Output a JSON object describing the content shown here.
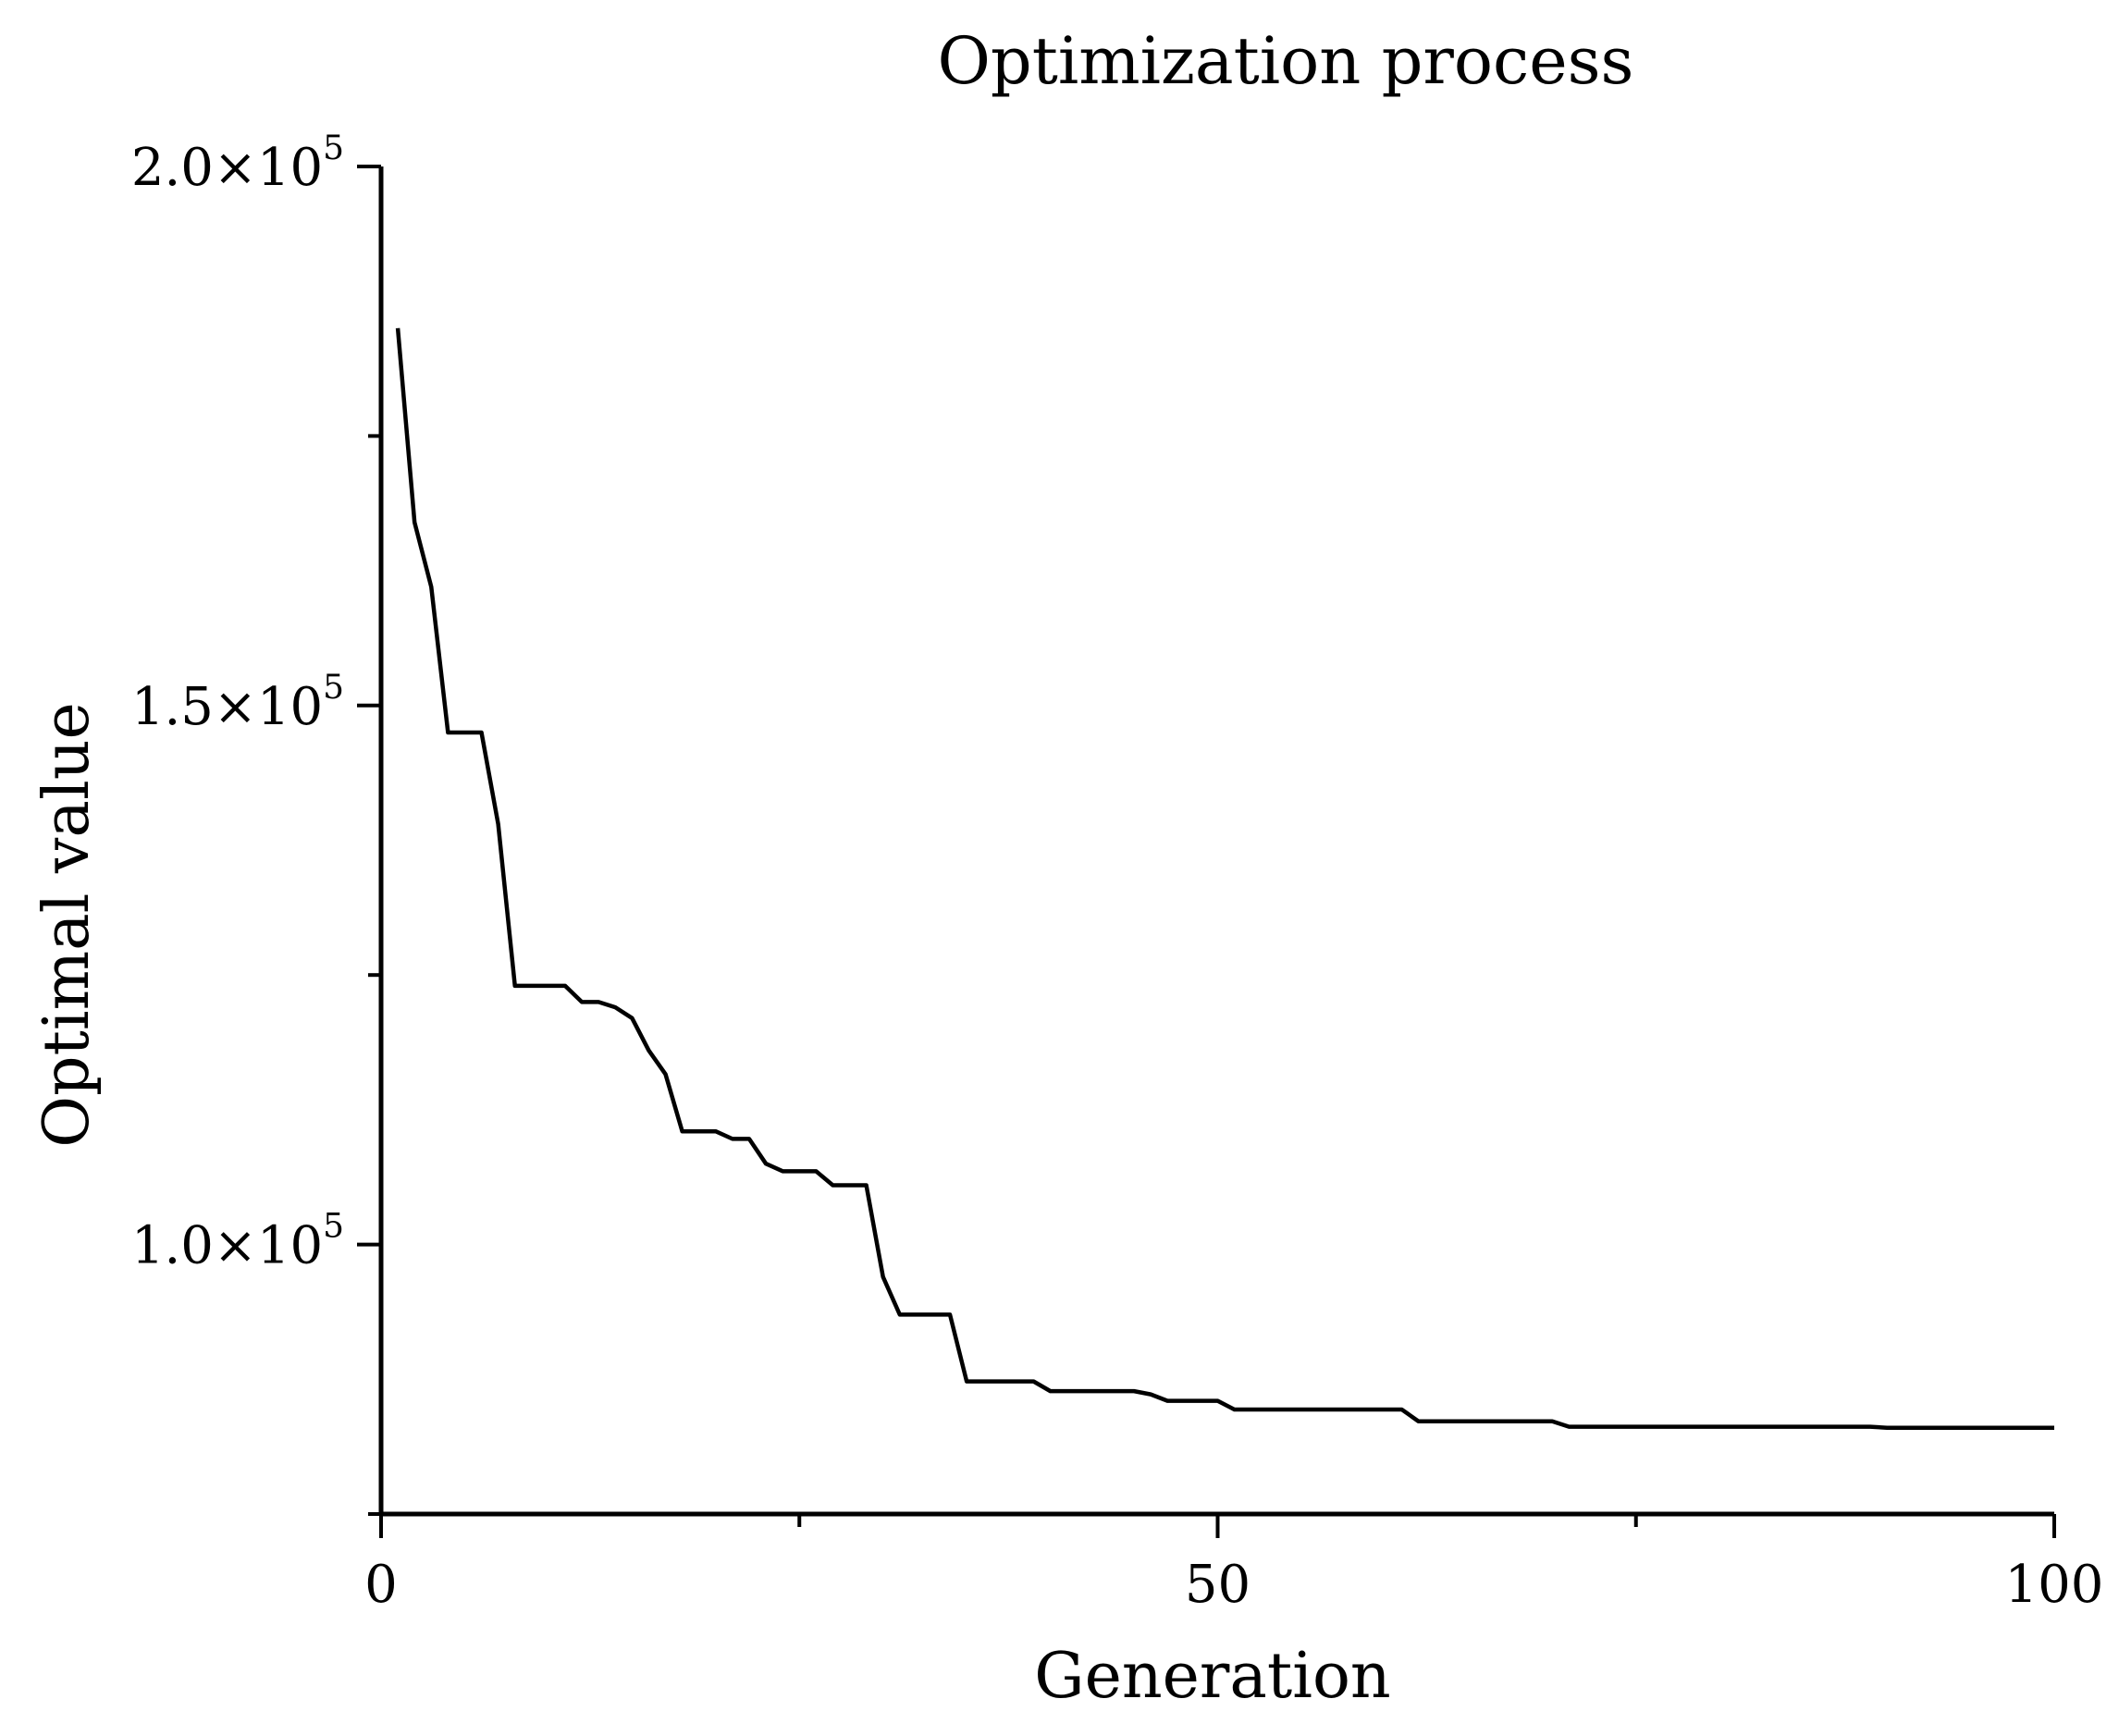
{
  "chart_data": {
    "type": "line",
    "title": "Optimization process",
    "xlabel": "Generation",
    "ylabel": "Optimal value",
    "xlim": [
      0,
      100
    ],
    "ylim": [
      75000,
      200000
    ],
    "x_major_ticks": [
      0,
      50,
      100
    ],
    "x_tick_labels": [
      "0",
      "50",
      "100"
    ],
    "x_minor_ticks": [
      25,
      75
    ],
    "y_major_ticks": [
      100000,
      150000,
      200000
    ],
    "y_tick_labels": [
      {
        "mantissa": "1.0",
        "times": "×10",
        "exp": "5"
      },
      {
        "mantissa": "1.5",
        "times": "×10",
        "exp": "5"
      },
      {
        "mantissa": "2.0",
        "times": "×10",
        "exp": "5"
      }
    ],
    "y_minor_ticks": [
      75000,
      125000,
      175000
    ],
    "grid": false,
    "line_color": "#000000",
    "series": [
      {
        "x": [
          1,
          2,
          3,
          4,
          5,
          6,
          7,
          8,
          9,
          10,
          11,
          12,
          13,
          14,
          15,
          16,
          17,
          18,
          19,
          20,
          21,
          22,
          23,
          24,
          25,
          26,
          27,
          28,
          29,
          30,
          31,
          32,
          33,
          34,
          35,
          36,
          37,
          38,
          39,
          40,
          41,
          42,
          43,
          44,
          45,
          46,
          47,
          48,
          49,
          50,
          51,
          52,
          53,
          54,
          55,
          56,
          57,
          58,
          59,
          60,
          61,
          62,
          63,
          64,
          65,
          66,
          67,
          68,
          69,
          70,
          71,
          72,
          73,
          74,
          75,
          76,
          77,
          78,
          79,
          80,
          81,
          82,
          83,
          84,
          85,
          86,
          87,
          88,
          89,
          90,
          91,
          92,
          93,
          94,
          95,
          96,
          97,
          98,
          99,
          100
        ],
        "values": [
          185000,
          167000,
          161000,
          147500,
          147500,
          147500,
          139000,
          124000,
          124000,
          124000,
          124000,
          122500,
          122500,
          122000,
          121000,
          118000,
          115800,
          110500,
          110500,
          110500,
          109800,
          109800,
          107500,
          106800,
          106800,
          106800,
          105500,
          105500,
          105500,
          97000,
          93500,
          93500,
          93500,
          93500,
          87300,
          87300,
          87300,
          87300,
          87300,
          86400,
          86400,
          86400,
          86400,
          86400,
          86400,
          86100,
          85500,
          85500,
          85500,
          85500,
          84700,
          84700,
          84700,
          84700,
          84700,
          84700,
          84700,
          84700,
          84700,
          84700,
          84700,
          83600,
          83600,
          83600,
          83600,
          83600,
          83600,
          83600,
          83600,
          83600,
          83100,
          83100,
          83100,
          83100,
          83100,
          83100,
          83100,
          83100,
          83100,
          83100,
          83100,
          83100,
          83100,
          83100,
          83100,
          83100,
          83100,
          83100,
          83100,
          83000,
          83000,
          83000,
          83000,
          83000,
          83000,
          83000,
          83000,
          83000,
          83000,
          83000
        ]
      }
    ]
  }
}
